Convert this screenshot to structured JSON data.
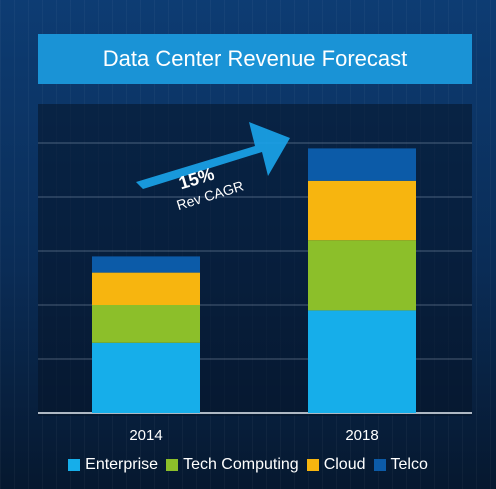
{
  "chart_data": {
    "type": "bar",
    "stacked": true,
    "title": "Data Center Revenue Forecast",
    "categories": [
      "2014",
      "2018"
    ],
    "series": [
      {
        "name": "Enterprise",
        "values": [
          13,
          19
        ],
        "color": "#16aeea"
      },
      {
        "name": "Tech Computing",
        "values": [
          7,
          13
        ],
        "color": "#8cbf2a"
      },
      {
        "name": "Cloud",
        "values": [
          6,
          11
        ],
        "color": "#f7b50f"
      },
      {
        "name": "Telco",
        "values": [
          3,
          6
        ],
        "color": "#0c5ba8"
      }
    ],
    "ylim": [
      0,
      50
    ],
    "grid": true,
    "legend": "bottom",
    "annotation": {
      "value": "15%",
      "label": "Rev CAGR"
    }
  }
}
